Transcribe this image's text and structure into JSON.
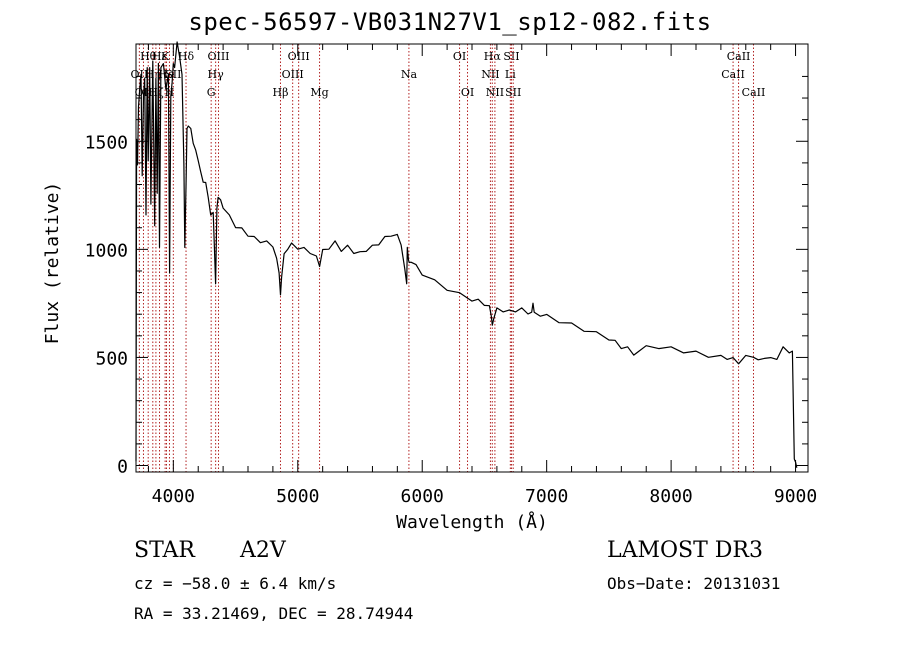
{
  "chart_data": {
    "type": "line",
    "title": "spec-56597-VB031N27V1_sp12-082.fits",
    "xlabel": "Wavelength (Å)",
    "ylabel": "Flux (relative)",
    "xlim": [
      3700,
      9100
    ],
    "ylim": [
      -30,
      1950
    ],
    "xticks": [
      4000,
      5000,
      6000,
      7000,
      8000,
      9000
    ],
    "xtick_labels": [
      "4000",
      "5000",
      "6000",
      "7000",
      "8000",
      "9000"
    ],
    "yticks": [
      0,
      500,
      1000,
      1500
    ],
    "ytick_labels": [
      "0",
      "500",
      "1000",
      "1500"
    ],
    "series": [
      {
        "name": "flux",
        "x": [
          3700,
          3705,
          3712,
          3720,
          3730,
          3740,
          3750,
          3760,
          3770,
          3780,
          3790,
          3798,
          3810,
          3820,
          3835,
          3850,
          3860,
          3870,
          3880,
          3889,
          3900,
          3920,
          3940,
          3960,
          3970,
          3980,
          3990,
          4000,
          4010,
          4030,
          4050,
          4070,
          4085,
          4092,
          4102,
          4110,
          4120,
          4140,
          4160,
          4180,
          4200,
          4220,
          4240,
          4260,
          4280,
          4300,
          4320,
          4330,
          4340,
          4350,
          4360,
          4380,
          4400,
          4450,
          4500,
          4550,
          4600,
          4650,
          4700,
          4750,
          4800,
          4830,
          4850,
          4861,
          4870,
          4890,
          4920,
          4950,
          5000,
          5050,
          5100,
          5150,
          5175,
          5200,
          5250,
          5300,
          5350,
          5400,
          5450,
          5500,
          5550,
          5600,
          5650,
          5700,
          5750,
          5800,
          5830,
          5860,
          5875,
          5880,
          5890,
          5895,
          5910,
          5950,
          6000,
          6100,
          6200,
          6300,
          6400,
          6450,
          6500,
          6540,
          6555,
          6563,
          6575,
          6600,
          6650,
          6700,
          6750,
          6800,
          6850,
          6880,
          6890,
          6900,
          6950,
          7000,
          7100,
          7200,
          7300,
          7400,
          7500,
          7550,
          7600,
          7650,
          7700,
          7800,
          7900,
          8000,
          8100,
          8200,
          8300,
          8400,
          8450,
          8498,
          8542,
          8600,
          8662,
          8700,
          8750,
          8800,
          8850,
          8900,
          8950,
          8975,
          8990,
          9000,
          9010
        ],
        "y": [
          20,
          1500,
          1400,
          1650,
          1750,
          1800,
          1350,
          1700,
          1800,
          1150,
          1850,
          1400,
          1850,
          1200,
          1880,
          1100,
          1800,
          1250,
          1870,
          1000,
          1850,
          1850,
          1750,
          1800,
          900,
          1700,
          1780,
          1850,
          1850,
          1950,
          1900,
          1800,
          1400,
          1000,
          1300,
          1550,
          1580,
          1550,
          1500,
          1450,
          1420,
          1350,
          1320,
          1300,
          1250,
          1150,
          1180,
          1000,
          850,
          1180,
          1250,
          1220,
          1200,
          1150,
          1110,
          1090,
          1070,
          1050,
          1040,
          1030,
          1020,
          950,
          900,
          780,
          880,
          970,
          1010,
          1020,
          1010,
          1000,
          990,
          960,
          930,
          990,
          1010,
          1030,
          1000,
          1010,
          990,
          980,
          1000,
          1010,
          1030,
          1050,
          1070,
          1060,
          1030,
          900,
          850,
          1000,
          960,
          930,
          950,
          920,
          890,
          850,
          820,
          790,
          770,
          760,
          750,
          730,
          700,
          640,
          690,
          720,
          720,
          710,
          720,
          720,
          710,
          700,
          760,
          700,
          700,
          690,
          670,
          650,
          630,
          610,
          590,
          570,
          550,
          540,
          520,
          545,
          550,
          540,
          530,
          520,
          510,
          500,
          500,
          490,
          480,
          500,
          510,
          480,
          505,
          490,
          500,
          540,
          530,
          520,
          30,
          15,
          -10
        ]
      }
    ],
    "lines": [
      {
        "wl": 3727,
        "label": "OII",
        "row": 1
      },
      {
        "wl": 3760,
        "label": "OII",
        "row": 2
      },
      {
        "wl": 3798,
        "label": "Hθ",
        "row": 0
      },
      {
        "wl": 3835,
        "label": "Hη",
        "row": 1
      },
      {
        "wl": 3860,
        "label": "Hζ",
        "row": 2
      },
      {
        "wl": 3889,
        "label": "Hε",
        "row": 0
      },
      {
        "wl": 3934,
        "label": "K",
        "row": 0
      },
      {
        "wl": 3945,
        "label": "He",
        "row": 1
      },
      {
        "wl": 3969,
        "label": "H",
        "row": 2
      },
      {
        "wl": 4000,
        "label": "SII",
        "row": 1
      },
      {
        "wl": 4102,
        "label": "Hδ",
        "row": 0
      },
      {
        "wl": 4304,
        "label": "G",
        "row": 2
      },
      {
        "wl": 4340,
        "label": "Hγ",
        "row": 1
      },
      {
        "wl": 4363,
        "label": "OIII",
        "row": 0
      },
      {
        "wl": 4861,
        "label": "Hβ",
        "row": 2
      },
      {
        "wl": 4959,
        "label": "OIII",
        "row": 1
      },
      {
        "wl": 5007,
        "label": "OIII",
        "row": 0
      },
      {
        "wl": 5175,
        "label": "Mg",
        "row": 2
      },
      {
        "wl": 5893,
        "label": "Na",
        "row": 1
      },
      {
        "wl": 6300,
        "label": "OI",
        "row": 0
      },
      {
        "wl": 6364,
        "label": "OI",
        "row": 2
      },
      {
        "wl": 6548,
        "label": "NII",
        "row": 1
      },
      {
        "wl": 6563,
        "label": "Hα",
        "row": 0
      },
      {
        "wl": 6584,
        "label": "NII",
        "row": 2
      },
      {
        "wl": 6708,
        "label": "Li",
        "row": 1
      },
      {
        "wl": 6717,
        "label": "SII",
        "row": 0
      },
      {
        "wl": 6731,
        "label": "SII",
        "row": 2
      },
      {
        "wl": 8498,
        "label": "CaII",
        "row": 1
      },
      {
        "wl": 8542,
        "label": "CaII",
        "row": 0
      },
      {
        "wl": 8662,
        "label": "CaII",
        "row": 2
      }
    ],
    "line_color": "#b22222"
  },
  "footer": {
    "object_type": "STAR",
    "subclass": "A2V",
    "survey": "LAMOST DR3",
    "cz": "cz = −58.0 ± 6.4 km/s",
    "obs_date": "Obs−Date: 20131031",
    "coords": "RA =  33.21469, DEC =  28.74944"
  }
}
